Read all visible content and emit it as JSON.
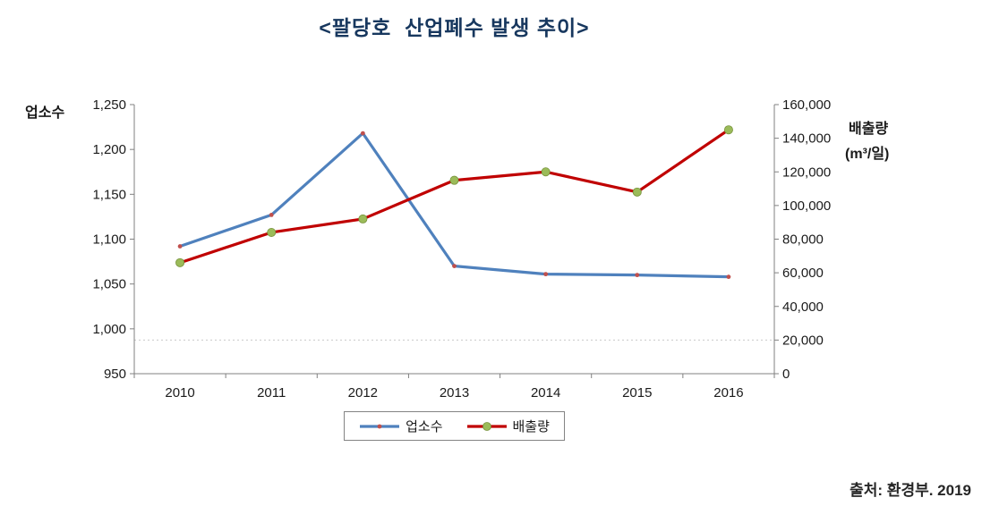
{
  "page": {
    "source": "출처: 환경부. 2019"
  },
  "chart_data": {
    "type": "line",
    "title": "<팔당호  산업폐수 발생 추이>",
    "title_color": "#17375E",
    "text_color": "#1a1a1a",
    "axis_color": "#808080",
    "categories": [
      "2010",
      "2011",
      "2012",
      "2013",
      "2014",
      "2015",
      "2016"
    ],
    "series": [
      {
        "name": "업소수",
        "axis": "left",
        "color": "#4F81BD",
        "marker_color": "#C0504D",
        "marker_size": "small",
        "values": [
          1092,
          1127,
          1218,
          1070,
          1061,
          1060,
          1058
        ]
      },
      {
        "name": "배출량",
        "axis": "right",
        "color": "#C00000",
        "marker_color": "#9BBB59",
        "marker_stroke": "#77933C",
        "marker_size": "large",
        "values": [
          66000,
          84000,
          92000,
          115000,
          120000,
          108000,
          145000
        ]
      }
    ],
    "left_axis": {
      "label": "업소수",
      "min": 950,
      "max": 1250,
      "tick_step": 50,
      "ticks": [
        950,
        1000,
        1050,
        1100,
        1150,
        1200,
        1250
      ]
    },
    "right_axis": {
      "label": "배출량",
      "sublabel": "(m³/일)",
      "min": 0,
      "max": 160000,
      "tick_step": 20000,
      "ticks": [
        0,
        20000,
        40000,
        60000,
        80000,
        100000,
        120000,
        140000,
        160000
      ]
    },
    "grid": {
      "right_values": [
        20000
      ],
      "color": "#C9C9C9",
      "style": "dotted"
    },
    "legend": {
      "position": "bottom",
      "entries": [
        "업소수",
        "배출량"
      ]
    }
  }
}
